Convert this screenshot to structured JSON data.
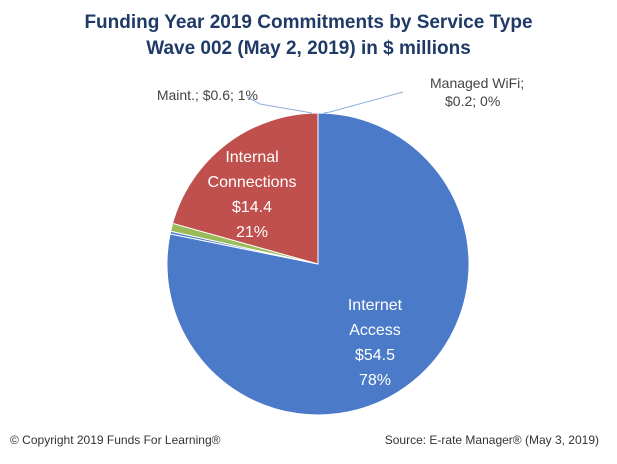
{
  "chart_data": {
    "type": "pie",
    "title": "Funding Year 2019 Commitments by Service Type",
    "subtitle": "Wave 002 (May 2, 2019) in $ millions",
    "slices": [
      {
        "key": "internet",
        "category_lines": [
          "Internet",
          "Access"
        ],
        "value": 54.5,
        "value_label": "$54.5",
        "percent_label": "78%",
        "color": "#4a7ac8",
        "label_color": "#ffffff"
      },
      {
        "key": "managed-wifi",
        "category_lines": [
          "Managed WiFi;"
        ],
        "value": 0.2,
        "value_label": "$0.2; 0%",
        "color": "#4a7ac8",
        "label_color": "#444444"
      },
      {
        "key": "maint",
        "category_lines": [
          "Maint.;"
        ],
        "value": 0.6,
        "value_label": "$0.6; 1%",
        "color": "#9bbb59",
        "label_color": "#444444"
      },
      {
        "key": "internal",
        "category_lines": [
          "Internal",
          "Connections"
        ],
        "value": 14.4,
        "value_label": "$14.4",
        "percent_label": "21%",
        "color": "#c0504d",
        "label_color": "#ffffff"
      }
    ]
  },
  "footer": {
    "copyright": "© Copyright 2019 Funds For Learning®",
    "source": "Source: E-rate Manager®  (May 3, 2019)"
  }
}
